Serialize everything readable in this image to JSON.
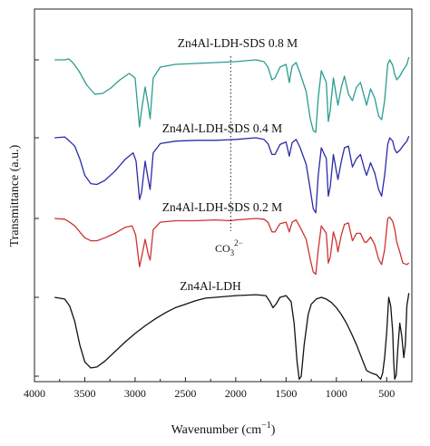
{
  "chart_data": {
    "type": "line",
    "xlabel": "Wavenumber (cm",
    "xlabel_sup": "−1",
    "xlabel_tail": ")",
    "ylabel": "Transmittance (a.u.)",
    "xlim": [
      4000,
      250
    ],
    "x_reversed": true,
    "grid": false,
    "x_ticks": [
      4000,
      3500,
      3000,
      2500,
      2000,
      1500,
      1000,
      500
    ],
    "x_tick_labels": [
      "4000",
      "3500",
      "3000",
      "2500",
      "2000",
      "1500",
      "1000",
      "500"
    ],
    "annotation": {
      "text_main": "CO",
      "text_sub": "3",
      "text_sup": "2−",
      "x": 2050
    },
    "series": [
      {
        "name": "Zn4Al-LDH-SDS 0.8 M",
        "color": "#2a9d8f",
        "points": [
          [
            3800,
            0.0
          ],
          [
            3700,
            0.0
          ],
          [
            3660,
            0.01
          ],
          [
            3620,
            -0.03
          ],
          [
            3560,
            -0.12
          ],
          [
            3480,
            -0.28
          ],
          [
            3400,
            -0.38
          ],
          [
            3320,
            -0.37
          ],
          [
            3240,
            -0.31
          ],
          [
            3150,
            -0.22
          ],
          [
            3060,
            -0.15
          ],
          [
            3000,
            -0.2
          ],
          [
            2956,
            -0.74
          ],
          [
            2935,
            -0.55
          ],
          [
            2900,
            -0.3
          ],
          [
            2870,
            -0.5
          ],
          [
            2851,
            -0.65
          ],
          [
            2820,
            -0.2
          ],
          [
            2750,
            -0.08
          ],
          [
            2600,
            -0.05
          ],
          [
            2400,
            -0.04
          ],
          [
            2200,
            -0.03
          ],
          [
            2000,
            -0.02
          ],
          [
            1800,
            0.0
          ],
          [
            1720,
            -0.02
          ],
          [
            1680,
            -0.08
          ],
          [
            1640,
            -0.22
          ],
          [
            1610,
            -0.2
          ],
          [
            1560,
            -0.08
          ],
          [
            1500,
            -0.05
          ],
          [
            1468,
            -0.25
          ],
          [
            1440,
            -0.07
          ],
          [
            1400,
            -0.03
          ],
          [
            1360,
            -0.15
          ],
          [
            1300,
            -0.35
          ],
          [
            1260,
            -0.65
          ],
          [
            1230,
            -0.78
          ],
          [
            1205,
            -0.8
          ],
          [
            1180,
            -0.42
          ],
          [
            1150,
            -0.12
          ],
          [
            1100,
            -0.25
          ],
          [
            1080,
            -0.68
          ],
          [
            1060,
            -0.55
          ],
          [
            1030,
            -0.2
          ],
          [
            1000,
            -0.4
          ],
          [
            985,
            -0.5
          ],
          [
            950,
            -0.3
          ],
          [
            920,
            -0.18
          ],
          [
            880,
            -0.38
          ],
          [
            840,
            -0.45
          ],
          [
            800,
            -0.3
          ],
          [
            760,
            -0.25
          ],
          [
            720,
            -0.42
          ],
          [
            700,
            -0.5
          ],
          [
            660,
            -0.32
          ],
          [
            620,
            -0.42
          ],
          [
            580,
            -0.62
          ],
          [
            550,
            -0.66
          ],
          [
            520,
            -0.45
          ],
          [
            490,
            -0.05
          ],
          [
            470,
            0.0
          ],
          [
            440,
            -0.06
          ],
          [
            420,
            -0.16
          ],
          [
            400,
            -0.22
          ],
          [
            370,
            -0.18
          ],
          [
            340,
            -0.12
          ],
          [
            300,
            -0.05
          ],
          [
            280,
            0.03
          ]
        ]
      },
      {
        "name": "Zn4Al-LDH-SDS 0.4 M",
        "color": "#2b2ba8",
        "points": [
          [
            3800,
            0.0
          ],
          [
            3700,
            0.01
          ],
          [
            3660,
            -0.03
          ],
          [
            3600,
            -0.1
          ],
          [
            3550,
            -0.25
          ],
          [
            3500,
            -0.45
          ],
          [
            3440,
            -0.55
          ],
          [
            3380,
            -0.56
          ],
          [
            3300,
            -0.51
          ],
          [
            3200,
            -0.4
          ],
          [
            3100,
            -0.26
          ],
          [
            3020,
            -0.18
          ],
          [
            2990,
            -0.28
          ],
          [
            2956,
            -0.74
          ],
          [
            2935,
            -0.65
          ],
          [
            2900,
            -0.28
          ],
          [
            2870,
            -0.5
          ],
          [
            2851,
            -0.62
          ],
          [
            2820,
            -0.18
          ],
          [
            2750,
            -0.07
          ],
          [
            2600,
            -0.04
          ],
          [
            2400,
            -0.03
          ],
          [
            2200,
            -0.03
          ],
          [
            2000,
            -0.02
          ],
          [
            1800,
            0.0
          ],
          [
            1720,
            -0.02
          ],
          [
            1680,
            -0.07
          ],
          [
            1640,
            -0.2
          ],
          [
            1610,
            -0.2
          ],
          [
            1560,
            -0.08
          ],
          [
            1500,
            -0.05
          ],
          [
            1468,
            -0.22
          ],
          [
            1440,
            -0.06
          ],
          [
            1400,
            -0.02
          ],
          [
            1360,
            -0.12
          ],
          [
            1300,
            -0.32
          ],
          [
            1260,
            -0.62
          ],
          [
            1230,
            -0.85
          ],
          [
            1205,
            -0.9
          ],
          [
            1180,
            -0.45
          ],
          [
            1150,
            -0.12
          ],
          [
            1100,
            -0.25
          ],
          [
            1080,
            -0.7
          ],
          [
            1060,
            -0.58
          ],
          [
            1030,
            -0.2
          ],
          [
            1000,
            -0.4
          ],
          [
            985,
            -0.5
          ],
          [
            950,
            -0.28
          ],
          [
            920,
            -0.12
          ],
          [
            880,
            -0.1
          ],
          [
            840,
            -0.35
          ],
          [
            800,
            -0.25
          ],
          [
            760,
            -0.2
          ],
          [
            720,
            -0.38
          ],
          [
            700,
            -0.45
          ],
          [
            660,
            -0.3
          ],
          [
            620,
            -0.42
          ],
          [
            580,
            -0.62
          ],
          [
            550,
            -0.7
          ],
          [
            520,
            -0.45
          ],
          [
            490,
            -0.08
          ],
          [
            470,
            0.0
          ],
          [
            440,
            -0.04
          ],
          [
            420,
            -0.14
          ],
          [
            400,
            -0.18
          ],
          [
            370,
            -0.15
          ],
          [
            340,
            -0.1
          ],
          [
            300,
            -0.04
          ],
          [
            280,
            0.02
          ]
        ]
      },
      {
        "name": "Zn4Al-LDH-SDS 0.2 M",
        "color": "#cc3333",
        "points": [
          [
            3800,
            0.0
          ],
          [
            3700,
            -0.01
          ],
          [
            3660,
            -0.04
          ],
          [
            3600,
            -0.1
          ],
          [
            3550,
            -0.18
          ],
          [
            3500,
            -0.26
          ],
          [
            3440,
            -0.3
          ],
          [
            3380,
            -0.3
          ],
          [
            3300,
            -0.26
          ],
          [
            3200,
            -0.2
          ],
          [
            3100,
            -0.12
          ],
          [
            3030,
            -0.1
          ],
          [
            2995,
            -0.22
          ],
          [
            2956,
            -0.65
          ],
          [
            2935,
            -0.52
          ],
          [
            2900,
            -0.28
          ],
          [
            2870,
            -0.48
          ],
          [
            2851,
            -0.56
          ],
          [
            2820,
            -0.15
          ],
          [
            2750,
            -0.05
          ],
          [
            2600,
            -0.03
          ],
          [
            2400,
            -0.03
          ],
          [
            2200,
            -0.02
          ],
          [
            2050,
            -0.03
          ],
          [
            2000,
            -0.02
          ],
          [
            1800,
            0.0
          ],
          [
            1720,
            -0.01
          ],
          [
            1680,
            -0.05
          ],
          [
            1640,
            -0.18
          ],
          [
            1610,
            -0.18
          ],
          [
            1560,
            -0.07
          ],
          [
            1500,
            -0.05
          ],
          [
            1468,
            -0.18
          ],
          [
            1440,
            -0.05
          ],
          [
            1400,
            -0.02
          ],
          [
            1360,
            -0.12
          ],
          [
            1300,
            -0.28
          ],
          [
            1260,
            -0.55
          ],
          [
            1230,
            -0.72
          ],
          [
            1205,
            -0.75
          ],
          [
            1180,
            -0.42
          ],
          [
            1150,
            -0.1
          ],
          [
            1100,
            -0.2
          ],
          [
            1080,
            -0.6
          ],
          [
            1060,
            -0.52
          ],
          [
            1030,
            -0.18
          ],
          [
            1000,
            -0.32
          ],
          [
            985,
            -0.45
          ],
          [
            950,
            -0.22
          ],
          [
            920,
            -0.08
          ],
          [
            880,
            -0.06
          ],
          [
            840,
            -0.3
          ],
          [
            800,
            -0.2
          ],
          [
            760,
            -0.2
          ],
          [
            720,
            -0.32
          ],
          [
            700,
            -0.32
          ],
          [
            660,
            -0.25
          ],
          [
            620,
            -0.35
          ],
          [
            580,
            -0.55
          ],
          [
            550,
            -0.62
          ],
          [
            520,
            -0.42
          ],
          [
            490,
            0.0
          ],
          [
            470,
            0.02
          ],
          [
            440,
            -0.04
          ],
          [
            420,
            -0.14
          ],
          [
            400,
            -0.32
          ],
          [
            370,
            -0.45
          ],
          [
            340,
            -0.6
          ],
          [
            300,
            -0.62
          ],
          [
            280,
            -0.6
          ]
        ]
      },
      {
        "name": "Zn4Al-LDH",
        "color": "#111111",
        "points": [
          [
            3800,
            0.0
          ],
          [
            3700,
            -0.02
          ],
          [
            3650,
            -0.1
          ],
          [
            3600,
            -0.28
          ],
          [
            3550,
            -0.55
          ],
          [
            3500,
            -0.75
          ],
          [
            3440,
            -0.82
          ],
          [
            3380,
            -0.81
          ],
          [
            3300,
            -0.74
          ],
          [
            3200,
            -0.63
          ],
          [
            3100,
            -0.52
          ],
          [
            3000,
            -0.42
          ],
          [
            2900,
            -0.33
          ],
          [
            2800,
            -0.25
          ],
          [
            2700,
            -0.18
          ],
          [
            2600,
            -0.12
          ],
          [
            2500,
            -0.08
          ],
          [
            2400,
            -0.04
          ],
          [
            2300,
            -0.01
          ],
          [
            2200,
            0.0
          ],
          [
            2000,
            0.02
          ],
          [
            1800,
            0.03
          ],
          [
            1700,
            0.02
          ],
          [
            1660,
            -0.05
          ],
          [
            1630,
            -0.12
          ],
          [
            1600,
            -0.08
          ],
          [
            1560,
            0.0
          ],
          [
            1500,
            0.02
          ],
          [
            1450,
            -0.05
          ],
          [
            1420,
            -0.3
          ],
          [
            1390,
            -0.75
          ],
          [
            1370,
            -0.95
          ],
          [
            1350,
            -0.92
          ],
          [
            1320,
            -0.55
          ],
          [
            1280,
            -0.2
          ],
          [
            1250,
            -0.08
          ],
          [
            1200,
            -0.02
          ],
          [
            1150,
            0.0
          ],
          [
            1100,
            -0.02
          ],
          [
            1050,
            -0.06
          ],
          [
            1000,
            -0.12
          ],
          [
            950,
            -0.2
          ],
          [
            900,
            -0.3
          ],
          [
            850,
            -0.42
          ],
          [
            800,
            -0.55
          ],
          [
            750,
            -0.7
          ],
          [
            700,
            -0.85
          ],
          [
            650,
            -0.88
          ],
          [
            600,
            -0.9
          ],
          [
            560,
            -0.95
          ],
          [
            540,
            -0.88
          ],
          [
            520,
            -0.7
          ],
          [
            500,
            -0.4
          ],
          [
            480,
            0.0
          ],
          [
            460,
            -0.1
          ],
          [
            440,
            -0.4
          ],
          [
            430,
            -0.75
          ],
          [
            420,
            -0.95
          ],
          [
            405,
            -0.9
          ],
          [
            390,
            -0.6
          ],
          [
            370,
            -0.3
          ],
          [
            350,
            -0.45
          ],
          [
            330,
            -0.7
          ],
          [
            315,
            -0.55
          ],
          [
            300,
            -0.1
          ],
          [
            280,
            0.05
          ]
        ]
      }
    ]
  }
}
